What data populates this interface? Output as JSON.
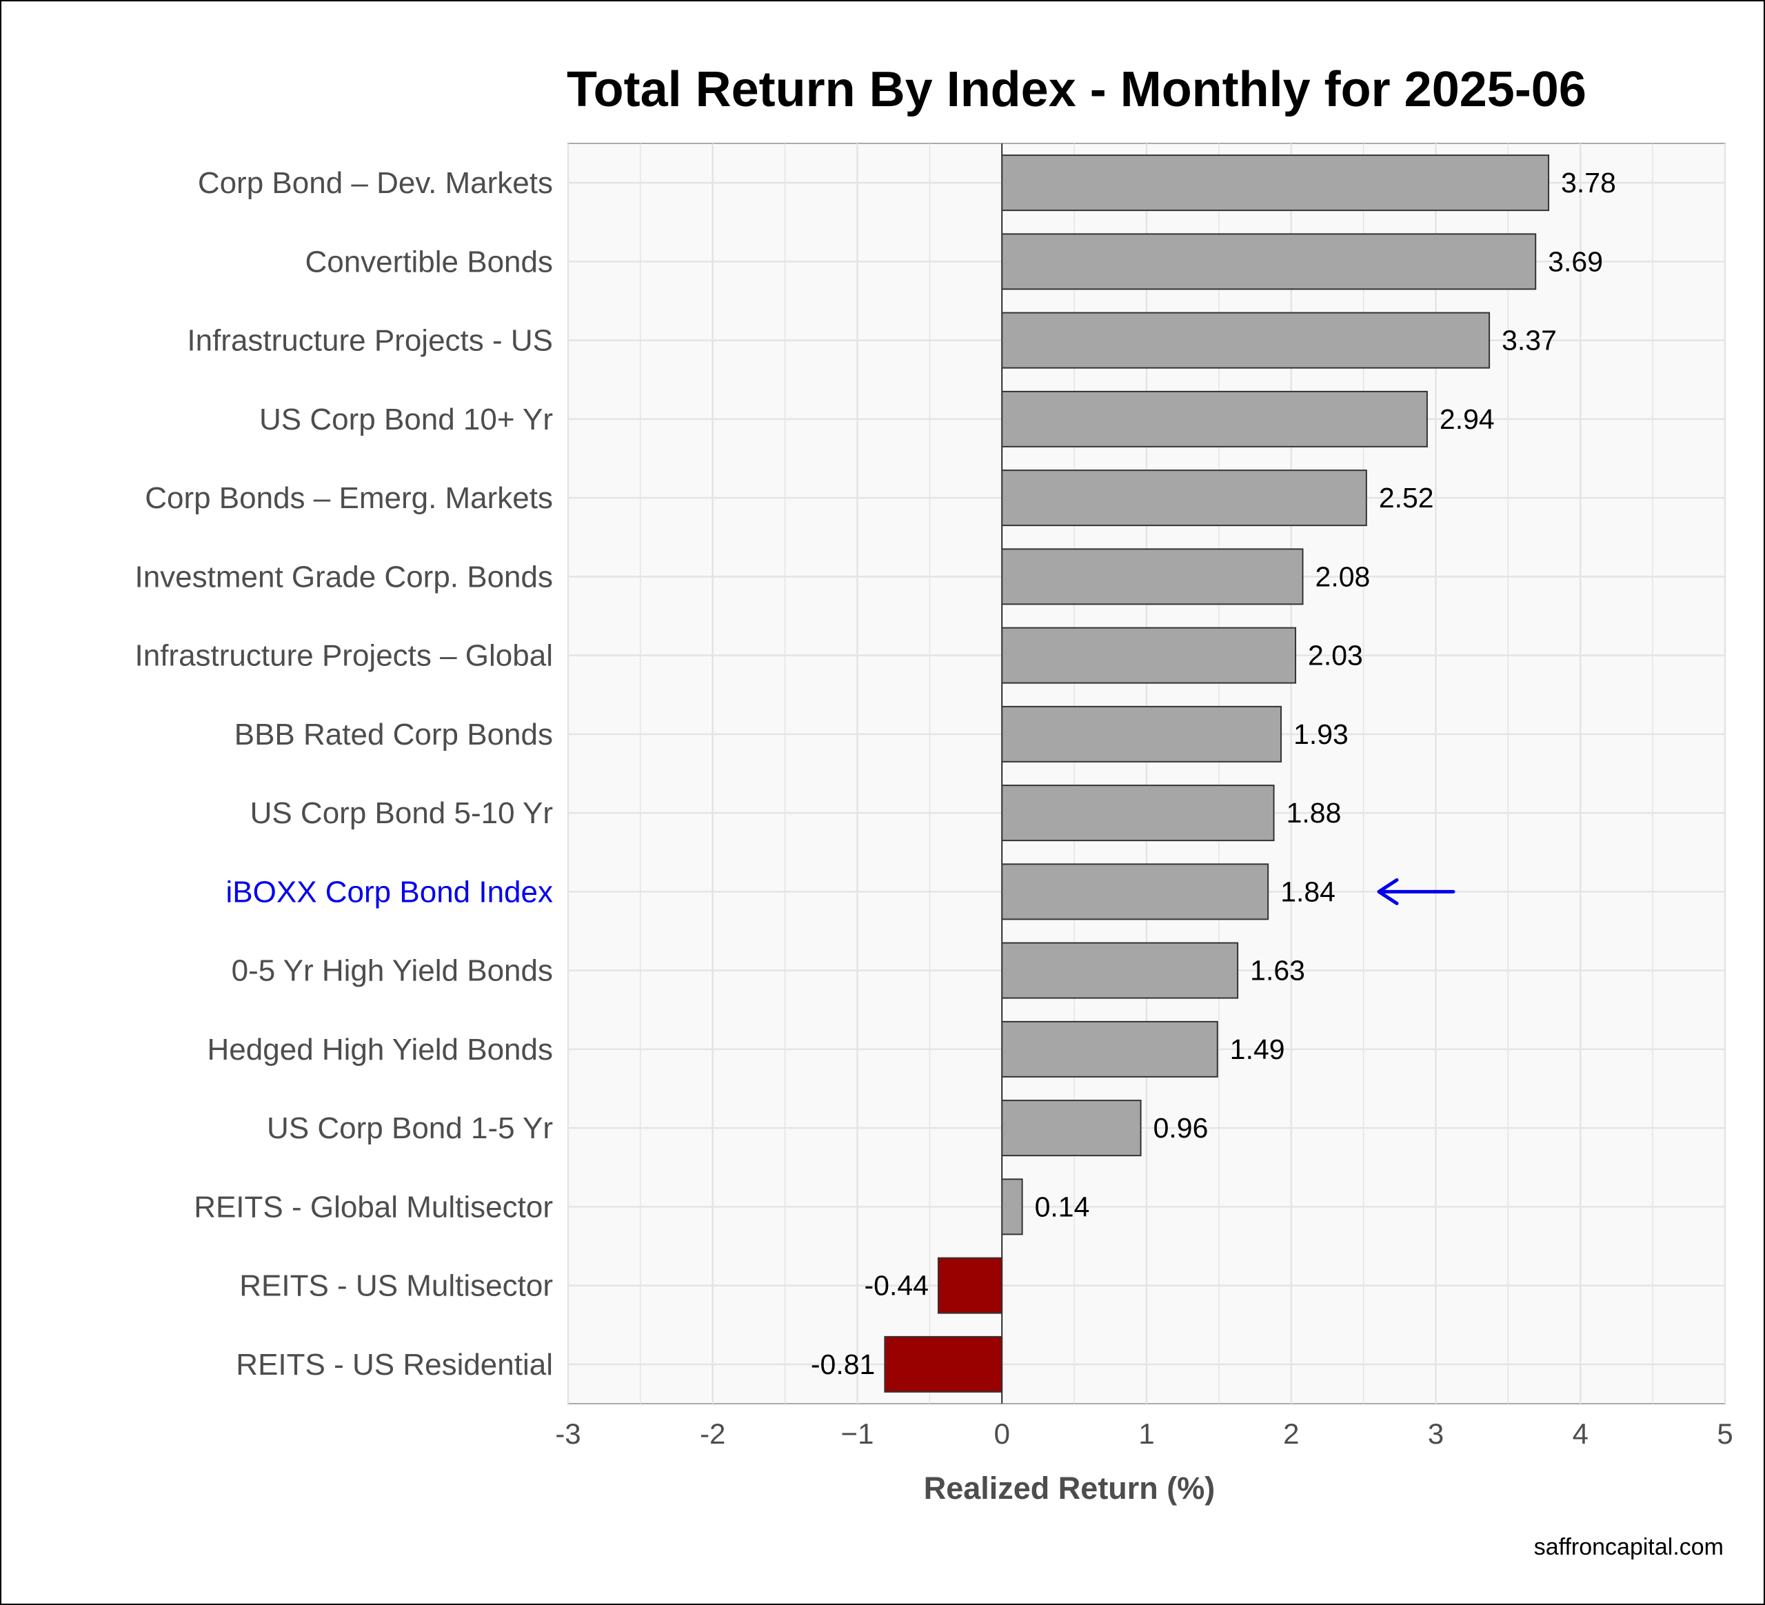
{
  "chart_data": {
    "type": "bar",
    "orientation": "horizontal",
    "title": "Total Return By Index - Monthly for 2025-06",
    "xlabel": "Realized Return (%)",
    "ylabel": "",
    "xlim": [
      -3,
      5
    ],
    "x_ticks": [
      -3,
      -2,
      -1,
      0,
      1,
      2,
      3,
      4,
      5
    ],
    "x_tick_labels": [
      "-3",
      "-2",
      "−1",
      "0",
      "1",
      "2",
      "3",
      "4",
      "5"
    ],
    "grid": true,
    "categories": [
      "Corp Bond – Dev. Markets",
      "Convertible Bonds",
      "Infrastructure Projects - US",
      "US Corp Bond 10+ Yr",
      "Corp Bonds – Emerg. Markets",
      "Investment Grade Corp. Bonds",
      "Infrastructure Projects – Global",
      "BBB Rated Corp Bonds",
      "US Corp Bond 5-10 Yr",
      "iBOXX Corp Bond Index",
      "0-5 Yr High Yield Bonds",
      "Hedged High Yield Bonds",
      "US Corp Bond 1-5 Yr",
      "REITS - Global Multisector",
      "REITS - US Multisector ",
      "REITS - US Residential"
    ],
    "values": [
      3.78,
      3.69,
      3.37,
      2.94,
      2.52,
      2.08,
      2.03,
      1.93,
      1.88,
      1.84,
      1.63,
      1.49,
      0.96,
      0.14,
      -0.44,
      -0.81
    ],
    "value_labels": [
      "3.78",
      "3.69",
      "3.37",
      "2.94",
      "2.52",
      "2.08",
      "2.03",
      "1.93",
      "1.88",
      "1.84",
      "1.63",
      "1.49",
      "0.96",
      "0.14",
      "-0.44",
      "-0.81"
    ],
    "highlight": {
      "category": "iBOXX Corp Bond Index",
      "marker": "arrow-pointing-left",
      "color": "#0000ee"
    },
    "colors": {
      "positive": "#a6a6a6",
      "negative": "#990000",
      "bar_outline": "#333333",
      "panel_background": "#f9f9f9",
      "gridline": "#e4e4e4",
      "category_label": "#4d4d4d",
      "highlight_label": "#0000ee"
    },
    "credit": "saffroncapital.com"
  }
}
